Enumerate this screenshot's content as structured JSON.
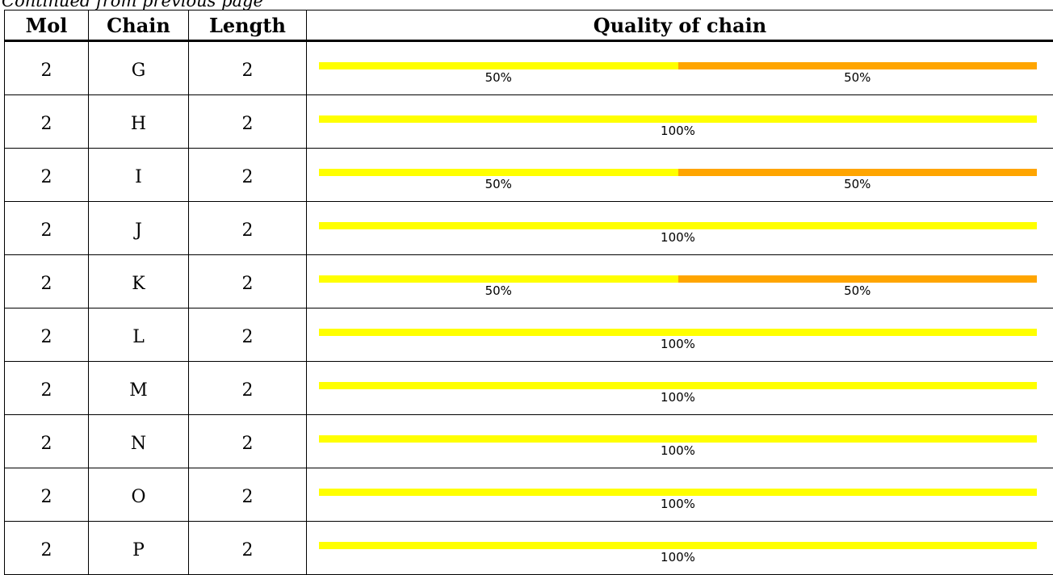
{
  "caption": "Continued from previous page",
  "table": {
    "headers": {
      "mol": "Mol",
      "chain": "Chain",
      "length": "Length",
      "quality": "Quality of chain"
    },
    "colors": {
      "yellow": "#ffff00",
      "orange": "#ffa500"
    },
    "rows": [
      {
        "mol": "2",
        "chain": "G",
        "length": "2",
        "segments": [
          {
            "color": "yellow",
            "fraction": 0.5,
            "label": "50%"
          },
          {
            "color": "orange",
            "fraction": 0.5,
            "label": "50%"
          }
        ]
      },
      {
        "mol": "2",
        "chain": "H",
        "length": "2",
        "segments": [
          {
            "color": "yellow",
            "fraction": 1.0,
            "label": "100%"
          }
        ]
      },
      {
        "mol": "2",
        "chain": "I",
        "length": "2",
        "segments": [
          {
            "color": "yellow",
            "fraction": 0.5,
            "label": "50%"
          },
          {
            "color": "orange",
            "fraction": 0.5,
            "label": "50%"
          }
        ]
      },
      {
        "mol": "2",
        "chain": "J",
        "length": "2",
        "segments": [
          {
            "color": "yellow",
            "fraction": 1.0,
            "label": "100%"
          }
        ]
      },
      {
        "mol": "2",
        "chain": "K",
        "length": "2",
        "segments": [
          {
            "color": "yellow",
            "fraction": 0.5,
            "label": "50%"
          },
          {
            "color": "orange",
            "fraction": 0.5,
            "label": "50%"
          }
        ]
      },
      {
        "mol": "2",
        "chain": "L",
        "length": "2",
        "segments": [
          {
            "color": "yellow",
            "fraction": 1.0,
            "label": "100%"
          }
        ]
      },
      {
        "mol": "2",
        "chain": "M",
        "length": "2",
        "segments": [
          {
            "color": "yellow",
            "fraction": 1.0,
            "label": "100%"
          }
        ]
      },
      {
        "mol": "2",
        "chain": "N",
        "length": "2",
        "segments": [
          {
            "color": "yellow",
            "fraction": 1.0,
            "label": "100%"
          }
        ]
      },
      {
        "mol": "2",
        "chain": "O",
        "length": "2",
        "segments": [
          {
            "color": "yellow",
            "fraction": 1.0,
            "label": "100%"
          }
        ]
      },
      {
        "mol": "2",
        "chain": "P",
        "length": "2",
        "segments": [
          {
            "color": "yellow",
            "fraction": 1.0,
            "label": "100%"
          }
        ]
      }
    ]
  }
}
